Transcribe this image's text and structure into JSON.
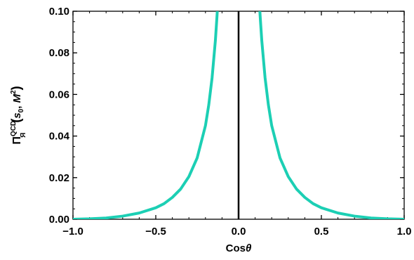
{
  "chart_data": {
    "type": "line",
    "xlabel": {
      "main": "Cos",
      "symbol": "θ"
    },
    "ylabel": {
      "base": "Π",
      "superscript": "QCD",
      "subscript": "Я",
      "args_open": "(",
      "s": "s",
      "s_sub": "0",
      "sep": ", ",
      "m": "M",
      "m_sup": "2",
      "args_close": ")"
    },
    "xlim": [
      -1.0,
      1.0
    ],
    "ylim": [
      0.0,
      0.1
    ],
    "x_ticks": [
      -1.0,
      -0.5,
      0.0,
      0.5,
      1.0
    ],
    "x_tick_labels": [
      "−1.0",
      "−0.5",
      "0.0",
      "0.5",
      "1.0"
    ],
    "y_ticks": [
      0.0,
      0.02,
      0.04,
      0.06,
      0.08,
      0.1
    ],
    "y_tick_labels": [
      "0.00",
      "0.02",
      "0.04",
      "0.06",
      "0.08",
      "0.10"
    ],
    "grid": false,
    "series": [
      {
        "color": "#1ccfb4",
        "x": [
          -1.0,
          -0.9,
          -0.8,
          -0.7,
          -0.6,
          -0.5,
          -0.45,
          -0.4,
          -0.35,
          -0.3,
          -0.25,
          -0.2,
          -0.18,
          -0.16,
          -0.14,
          -0.13,
          -0.12,
          0.12,
          0.13,
          0.14,
          0.16,
          0.18,
          0.2,
          0.25,
          0.3,
          0.35,
          0.4,
          0.45,
          0.5,
          0.6,
          0.7,
          0.8,
          0.9,
          1.0
        ],
        "y": [
          0.0,
          0.0002,
          0.0006,
          0.0015,
          0.003,
          0.0055,
          0.0075,
          0.0105,
          0.0145,
          0.0205,
          0.0295,
          0.045,
          0.055,
          0.068,
          0.086,
          0.098,
          0.112,
          0.112,
          0.098,
          0.086,
          0.068,
          0.055,
          0.045,
          0.0295,
          0.0205,
          0.0145,
          0.0105,
          0.0075,
          0.0055,
          0.003,
          0.0015,
          0.0006,
          0.0002,
          0.0
        ]
      }
    ],
    "vertical_line": {
      "x": 0.0,
      "color": "#000000"
    }
  }
}
